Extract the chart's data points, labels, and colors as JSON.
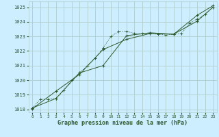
{
  "xlabel": "Graphe pression niveau de la mer (hPa)",
  "background_color": "#cceeff",
  "grid_color": "#b0cccc",
  "line_color": "#2d5a2d",
  "xlim": [
    -0.5,
    23.5
  ],
  "ylim": [
    1017.8,
    1025.4
  ],
  "yticks": [
    1018,
    1019,
    1020,
    1021,
    1022,
    1023,
    1024,
    1025
  ],
  "xticks": [
    0,
    1,
    2,
    3,
    4,
    5,
    6,
    7,
    8,
    9,
    10,
    11,
    12,
    13,
    14,
    15,
    16,
    17,
    18,
    19,
    20,
    21,
    22,
    23
  ],
  "line1_x": [
    0,
    1,
    2,
    3,
    4,
    5,
    6,
    7,
    8,
    9,
    10,
    11,
    12,
    13,
    14,
    15,
    16,
    17,
    18,
    19,
    20,
    21,
    22,
    23
  ],
  "line1_y": [
    1018.1,
    1018.7,
    1018.7,
    1018.75,
    1019.3,
    1020.0,
    1020.5,
    1021.0,
    1021.5,
    1022.2,
    1023.0,
    1023.35,
    1023.35,
    1023.2,
    1023.2,
    1023.2,
    1023.15,
    1023.1,
    1023.15,
    1023.2,
    1023.9,
    1024.2,
    1024.5,
    1025.0
  ],
  "line2_x": [
    0,
    3,
    6,
    9,
    12,
    15,
    18,
    21,
    23
  ],
  "line2_y": [
    1018.05,
    1019.25,
    1020.4,
    1022.1,
    1022.8,
    1023.2,
    1023.15,
    1024.45,
    1025.1
  ],
  "line3_x": [
    0,
    3,
    6,
    9,
    12,
    15,
    18,
    21,
    23
  ],
  "line3_y": [
    1018.1,
    1018.75,
    1020.5,
    1021.0,
    1023.05,
    1023.25,
    1023.15,
    1024.05,
    1025.0
  ]
}
